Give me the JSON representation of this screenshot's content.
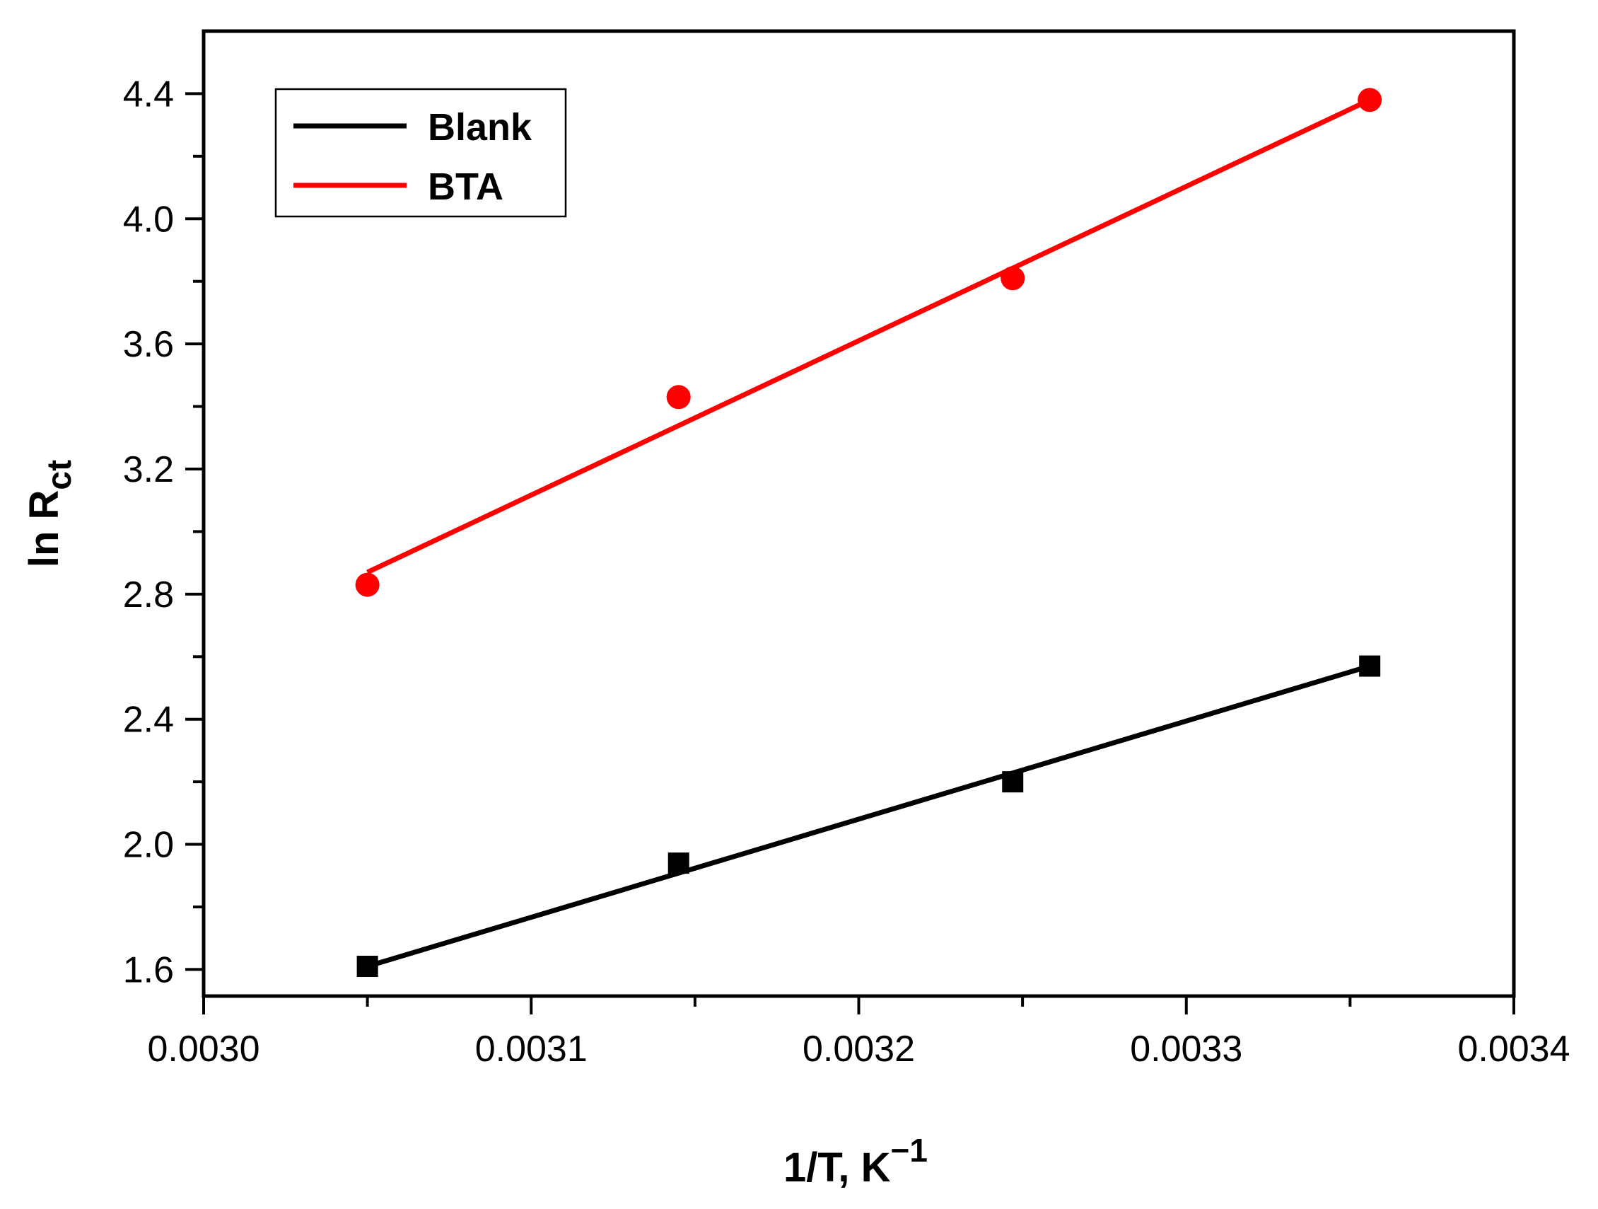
{
  "chart_data": {
    "type": "scatter",
    "title": "",
    "xlabel": "1/T, K",
    "xlabel_superscript": "−1",
    "ylabel_main": "ln R",
    "ylabel_sub": "ct",
    "xlim": [
      0.003,
      0.0034
    ],
    "ylim": [
      1.515,
      4.6
    ],
    "x_major_ticks": [
      0.003,
      0.0031,
      0.0032,
      0.0033,
      0.0034
    ],
    "x_tick_labels": [
      "0.0030",
      "0.0031",
      "0.0032",
      "0.0033",
      "0.0034"
    ],
    "x_minor_ticks": [
      0.00305,
      0.00315,
      0.00325,
      0.00335
    ],
    "y_major_ticks": [
      1.6,
      2.0,
      2.4,
      2.8,
      3.2,
      3.6,
      4.0,
      4.4
    ],
    "y_tick_labels": [
      "1.6",
      "2.0",
      "2.4",
      "2.8",
      "3.2",
      "3.6",
      "4.0",
      "4.4"
    ],
    "y_minor_ticks": [
      1.8,
      2.2,
      2.6,
      3.0,
      3.4,
      3.8,
      4.2
    ],
    "grid": false,
    "legend_position": "top-left",
    "series": [
      {
        "name": "Blank",
        "marker": "square",
        "color": "#000000",
        "x": [
          0.00305,
          0.003145,
          0.003247,
          0.003356
        ],
        "y": [
          1.61,
          1.94,
          2.2,
          2.57
        ],
        "fit": {
          "x": [
            0.00305,
            0.003356
          ],
          "y": [
            1.61,
            2.57
          ]
        }
      },
      {
        "name": "BTA",
        "marker": "circle",
        "color": "#ff0000",
        "x": [
          0.00305,
          0.003145,
          0.003247,
          0.003356
        ],
        "y": [
          2.83,
          3.43,
          3.81,
          4.38
        ],
        "fit": {
          "x": [
            0.00305,
            0.003356
          ],
          "y": [
            2.87,
            4.38
          ]
        }
      }
    ]
  }
}
